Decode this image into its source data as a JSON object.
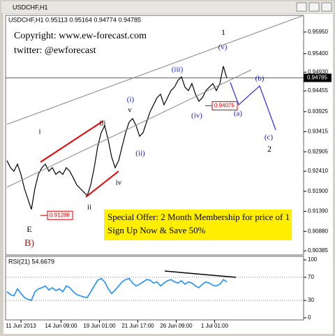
{
  "window_title": "USDCHF,H1",
  "header": "USDCHF,H1  0.95113 0.95164 0.94774 0.94785",
  "copyright": "Copyright: www.ew-forecast.com",
  "twitter": "twitter: @ewforecast",
  "offer": {
    "line1": "Special Offer: 2 Month Membership for price of 1",
    "line2": "Sign Up Now & Save 50%"
  },
  "annotations": [
    {
      "text": "1",
      "color": "#000000"
    },
    {
      "text": "(v)",
      "color": "#1a1acc"
    },
    {
      "text": "(iii)",
      "color": "#1a1acc"
    },
    {
      "text": "(i)",
      "color": "#1a1acc"
    },
    {
      "text": "v",
      "color": "#000000"
    },
    {
      "text": "iii",
      "color": "#000000"
    },
    {
      "text": "(iv)",
      "color": "#1a1acc"
    },
    {
      "text": "(ii)",
      "color": "#1a1acc"
    },
    {
      "text": "i",
      "color": "#000000"
    },
    {
      "text": "iv",
      "color": "#000000"
    },
    {
      "text": "ii",
      "color": "#000000"
    },
    {
      "text": "E",
      "color": "#000000"
    },
    {
      "text": "B)",
      "color": "#dd0000"
    },
    {
      "text": "(a)",
      "color": "#1a1acc"
    },
    {
      "text": "(b)",
      "color": "#1a1acc"
    },
    {
      "text": "(c)",
      "color": "#1a1acc"
    },
    {
      "text": "2",
      "color": "#000000"
    }
  ],
  "chart_data": [
    {
      "type": "line",
      "color": "#000000",
      "xlim": [
        0,
        63
      ],
      "ylim": [
        0.9028,
        0.9641
      ],
      "values": [
        0.9268,
        0.925,
        0.9241,
        0.9259,
        0.9233,
        0.9197,
        0.917,
        0.9144,
        0.9197,
        0.9233,
        0.925,
        0.9259,
        0.9241,
        0.925,
        0.9233,
        0.9241,
        0.9233,
        0.925,
        0.9241,
        0.9224,
        0.9206,
        0.9197,
        0.9188,
        0.9179,
        0.9206,
        0.925,
        0.9304,
        0.9339,
        0.9357,
        0.9321,
        0.9277,
        0.925,
        0.9268,
        0.9304,
        0.9339,
        0.9366,
        0.9375,
        0.9357,
        0.933,
        0.9339,
        0.9366,
        0.9392,
        0.941,
        0.9428,
        0.9437,
        0.941,
        0.9428,
        0.9446,
        0.9455,
        0.9472,
        0.9481,
        0.9455,
        0.9446,
        0.9464,
        0.9437,
        0.9419,
        0.9428,
        0.9446,
        0.9455,
        0.9464,
        0.9446,
        0.9464,
        0.9508,
        0.9478
      ],
      "yticks": [
        {
          "value": 0.9595,
          "label": "0.95950"
        },
        {
          "value": 0.954,
          "label": "0.95400"
        },
        {
          "value": 0.9493,
          "label": "0.94930"
        },
        {
          "value": 0.94455,
          "label": "0.94455"
        },
        {
          "value": 0.93925,
          "label": "0.93925"
        },
        {
          "value": 0.93415,
          "label": "0.93415"
        },
        {
          "value": 0.92905,
          "label": "0.92905"
        },
        {
          "value": 0.9241,
          "label": "0.92410"
        },
        {
          "value": 0.919,
          "label": "0.91900"
        },
        {
          "value": 0.9139,
          "label": "0.91390"
        },
        {
          "value": 0.9088,
          "label": "0.90880"
        },
        {
          "value": 0.90385,
          "label": "0.90385"
        }
      ],
      "last_price": {
        "value": 0.94785,
        "label": "0.94785"
      },
      "levels": [
        {
          "value": 0.94075,
          "label": "0.94075"
        },
        {
          "value": 0.91288,
          "label": "0.91288"
        }
      ]
    },
    {
      "type": "line",
      "title": "RSI(21) 54.6679",
      "color": "#1e90ff",
      "xlim": [
        0,
        63
      ],
      "ylim": [
        0,
        100
      ],
      "yticks": [
        100,
        70,
        30,
        0
      ],
      "xticks": [
        {
          "value": 4,
          "label": "11 Jun 2013"
        },
        {
          "value": 15.5,
          "label": "14 Jun 09:00"
        },
        {
          "value": 26.5,
          "label": "19 Jun 01:00"
        },
        {
          "value": 37.5,
          "label": "21 Jun 17:00"
        },
        {
          "value": 48.5,
          "label": "26 Jun 09:00"
        },
        {
          "value": 59.5,
          "label": "1 Jul 01:00"
        }
      ],
      "values": [
        45,
        40,
        38,
        50,
        42,
        35,
        32,
        30,
        45,
        50,
        52,
        55,
        48,
        52,
        47,
        50,
        45,
        55,
        52,
        45,
        40,
        38,
        36,
        35,
        45,
        55,
        65,
        68,
        62,
        50,
        42,
        48,
        55,
        62,
        66,
        68,
        60,
        55,
        58,
        62,
        66,
        65,
        60,
        62,
        55,
        60,
        64,
        66,
        62,
        60,
        64,
        58,
        62,
        60,
        55,
        52,
        58,
        62,
        60,
        56,
        55,
        58,
        66,
        62
      ]
    }
  ]
}
